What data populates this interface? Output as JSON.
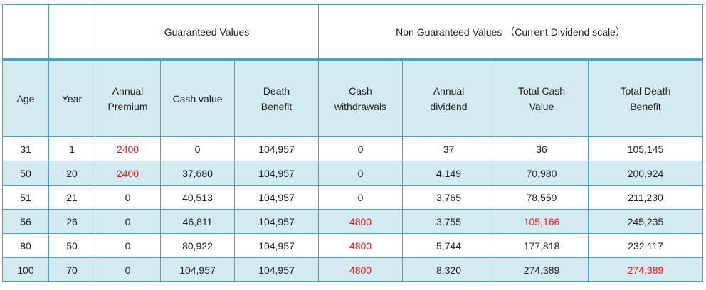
{
  "groups": {
    "guaranteed": "Guaranteed Values",
    "non_guaranteed": "Non Guaranteed Values （Current Dividend scale）"
  },
  "columns": [
    "Age",
    "Year",
    "Annual Premium",
    "Cash value",
    "Death Benefit",
    "Cash withdrawals",
    "Annual dividend",
    "Total Cash Value",
    "Total Death Benefit"
  ],
  "highlight_color": "#e8161e",
  "rows": [
    {
      "age": "31",
      "year": "1",
      "premium": "2400",
      "cash_value": "0",
      "death_benefit": "104,957",
      "withdrawals": "0",
      "dividend": "37",
      "total_cash": "36",
      "total_death": "105,145"
    },
    {
      "age": "50",
      "year": "20",
      "premium": "2400",
      "cash_value": "37,680",
      "death_benefit": "104,957",
      "withdrawals": "0",
      "dividend": "4,149",
      "total_cash": "70,980",
      "total_death": "200,924"
    },
    {
      "age": "51",
      "year": "21",
      "premium": "0",
      "cash_value": "40,513",
      "death_benefit": "104,957",
      "withdrawals": "0",
      "dividend": "3,765",
      "total_cash": "78,559",
      "total_death": "211,230"
    },
    {
      "age": "56",
      "year": "26",
      "premium": "0",
      "cash_value": "46,811",
      "death_benefit": "104,957",
      "withdrawals": "4800",
      "dividend": "3,755",
      "total_cash": "105,166",
      "total_death": "245,235"
    },
    {
      "age": "80",
      "year": "50",
      "premium": "0",
      "cash_value": "80,922",
      "death_benefit": "104,957",
      "withdrawals": "4800",
      "dividend": "5,744",
      "total_cash": "177,818",
      "total_death": "232,117"
    },
    {
      "age": "100",
      "year": "70",
      "premium": "0",
      "cash_value": "104,957",
      "death_benefit": "104,957",
      "withdrawals": "4800",
      "dividend": "8,320",
      "total_cash": "274,389",
      "total_death": "274,389"
    }
  ]
}
